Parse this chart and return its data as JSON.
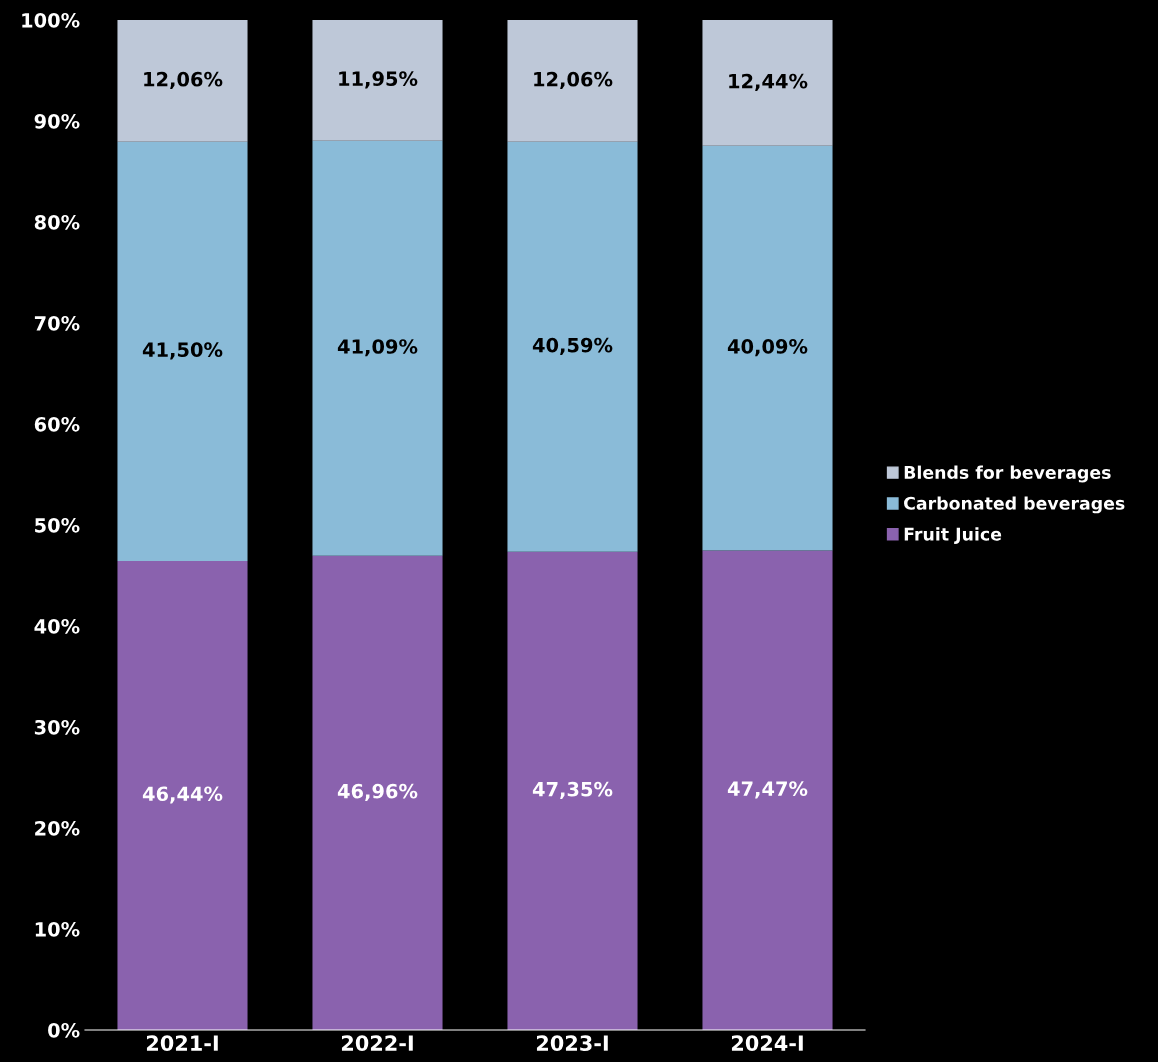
{
  "chart_data": {
    "type": "bar",
    "stacked": true,
    "categories": [
      "2021-I",
      "2022-I",
      "2023-I",
      "2024-I"
    ],
    "series": [
      {
        "name": "Fruit Juice",
        "color": "#8a62ae",
        "values": [
          46.44,
          46.96,
          47.35,
          47.47
        ],
        "value_labels": [
          "46,44%",
          "46,96%",
          "47,35%",
          "47,47%"
        ]
      },
      {
        "name": "Carbonated beverages",
        "color": "#8abbd8",
        "values": [
          41.5,
          41.09,
          40.59,
          40.09
        ],
        "value_labels": [
          "41,50%",
          "41,09%",
          "40,59%",
          "40,09%"
        ]
      },
      {
        "name": "Blends for beverages",
        "color": "#bec8d8",
        "values": [
          12.06,
          11.95,
          12.06,
          12.44
        ],
        "value_labels": [
          "12,06%",
          "11,95%",
          "12,06%",
          "12,44%"
        ]
      }
    ],
    "ylim": [
      0,
      100
    ],
    "yticks": [
      {
        "value": 0,
        "label": "0%"
      },
      {
        "value": 10,
        "label": "10%"
      },
      {
        "value": 20,
        "label": "20%"
      },
      {
        "value": 30,
        "label": "30%"
      },
      {
        "value": 40,
        "label": "40%"
      },
      {
        "value": 50,
        "label": "50%"
      },
      {
        "value": 60,
        "label": "60%"
      },
      {
        "value": 70,
        "label": "70%"
      },
      {
        "value": 80,
        "label": "80%"
      },
      {
        "value": 90,
        "label": "90%"
      },
      {
        "value": 100,
        "label": "100%"
      }
    ],
    "grid": false,
    "legend": "right"
  }
}
